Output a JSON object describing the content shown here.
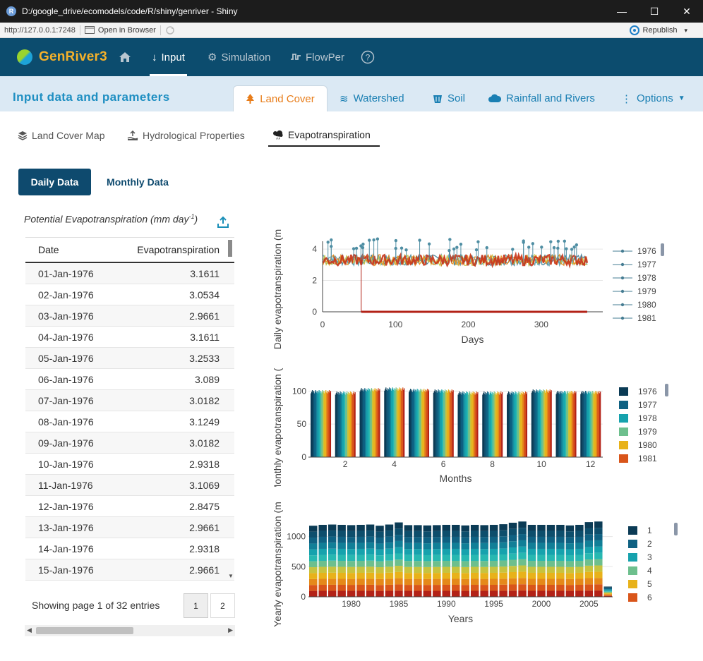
{
  "window": {
    "title": "D:/google_drive/ecomodels/code/R/shiny/genriver - Shiny",
    "controls": {
      "minimize": "—",
      "maximize": "☐",
      "close": "✕"
    }
  },
  "addressbar": {
    "url": "http://127.0.0.1:7248",
    "open_in_browser": "Open in Browser",
    "republish": "Republish"
  },
  "navbar": {
    "brand": "GenRiver3",
    "items": [
      {
        "label": "Input",
        "icon": "arrow-down-icon",
        "active": true
      },
      {
        "label": "Simulation",
        "icon": "gears-icon",
        "active": false
      },
      {
        "label": "FlowPer",
        "icon": "wave-icon",
        "active": false
      }
    ]
  },
  "subheader": {
    "title": "Input data and parameters",
    "tabs": [
      {
        "label": "Land Cover",
        "active": true
      },
      {
        "label": "Watershed"
      },
      {
        "label": "Soil"
      },
      {
        "label": "Rainfall and Rivers"
      },
      {
        "label": "Options"
      }
    ]
  },
  "subtabs": [
    {
      "label": "Land Cover Map"
    },
    {
      "label": "Hydrological Properties"
    },
    {
      "label": "Evapotranspiration",
      "active": true
    }
  ],
  "buttons": {
    "daily": "Daily Data",
    "monthly": "Monthly Data"
  },
  "table": {
    "caption": "Potential Evapotranspiration (mm day",
    "caption_sup": "-1",
    "caption_end": ")",
    "headers": [
      "Date",
      "Evapotranspiration"
    ],
    "rows": [
      [
        "01-Jan-1976",
        "3.1611"
      ],
      [
        "02-Jan-1976",
        "3.0534"
      ],
      [
        "03-Jan-1976",
        "2.9661"
      ],
      [
        "04-Jan-1976",
        "3.1611"
      ],
      [
        "05-Jan-1976",
        "3.2533"
      ],
      [
        "06-Jan-1976",
        "3.089"
      ],
      [
        "07-Jan-1976",
        "3.0182"
      ],
      [
        "08-Jan-1976",
        "3.1249"
      ],
      [
        "09-Jan-1976",
        "3.0182"
      ],
      [
        "10-Jan-1976",
        "2.9318"
      ],
      [
        "11-Jan-1976",
        "3.1069"
      ],
      [
        "12-Jan-1976",
        "2.8475"
      ],
      [
        "13-Jan-1976",
        "2.9661"
      ],
      [
        "14-Jan-1976",
        "2.9318"
      ],
      [
        "15-Jan-1976",
        "2.9661"
      ]
    ],
    "showing": "Showing page 1 of 32 entries",
    "pages": [
      "1",
      "2"
    ]
  },
  "colors": {
    "navbar": "#0c4c6e",
    "brand": "#f5b12a",
    "accent": "#1f8fc2",
    "active_tab": "#e87d1a"
  },
  "chart_data": [
    {
      "type": "line",
      "ylabel": "Daily evapotranspiration (m",
      "xlabel": "Days",
      "xticks": [
        "0",
        "100",
        "200",
        "300"
      ],
      "yticks": [
        "0",
        "2",
        "4"
      ],
      "xlim": [
        0,
        365
      ],
      "ylim": [
        0,
        4.5
      ],
      "legend": [
        "1976",
        "1977",
        "1978",
        "1979",
        "1980",
        "1981"
      ],
      "legend_position": "right",
      "series_note_value": 3.3,
      "drop_day": 53
    },
    {
      "type": "bar",
      "ylabel": "Monthly evapotranspiration (",
      "xlabel": "Months",
      "xticks": [
        "2",
        "4",
        "6",
        "8",
        "10",
        "12"
      ],
      "yticks": [
        "0",
        "50",
        "100"
      ],
      "categories": [
        1,
        2,
        3,
        4,
        5,
        6,
        7,
        8,
        9,
        10,
        11,
        12
      ],
      "values": [
        99,
        97,
        102,
        103,
        101,
        100,
        97,
        97,
        97,
        100,
        98,
        98
      ],
      "ylim": [
        0,
        110
      ],
      "legend": [
        "1976",
        "1977",
        "1978",
        "1979",
        "1980",
        "1981"
      ],
      "legend_position": "right"
    },
    {
      "type": "bar",
      "stacked": true,
      "ylabel": "Yearly evapotranspiration (m",
      "xlabel": "Years",
      "xticks": [
        "1980",
        "1985",
        "1990",
        "1995",
        "2000",
        "2005"
      ],
      "yticks": [
        "0",
        "500",
        "1000"
      ],
      "categories": [
        1976,
        1977,
        1978,
        1979,
        1980,
        1981,
        1982,
        1983,
        1984,
        1985,
        1986,
        1987,
        1988,
        1989,
        1990,
        1991,
        1992,
        1993,
        1994,
        1995,
        1996,
        1997,
        1998,
        1999,
        2000,
        2001,
        2002,
        2003,
        2004,
        2005,
        2006,
        2007
      ],
      "values": [
        1180,
        1195,
        1200,
        1195,
        1190,
        1195,
        1200,
        1180,
        1200,
        1235,
        1190,
        1190,
        1185,
        1190,
        1195,
        1195,
        1185,
        1195,
        1190,
        1195,
        1205,
        1230,
        1250,
        1195,
        1195,
        1195,
        1195,
        1185,
        1195,
        1240,
        1250,
        170
      ],
      "ylim": [
        0,
        1300
      ],
      "legend": [
        "1",
        "2",
        "3",
        "4",
        "5",
        "6"
      ],
      "legend_position": "right"
    }
  ]
}
